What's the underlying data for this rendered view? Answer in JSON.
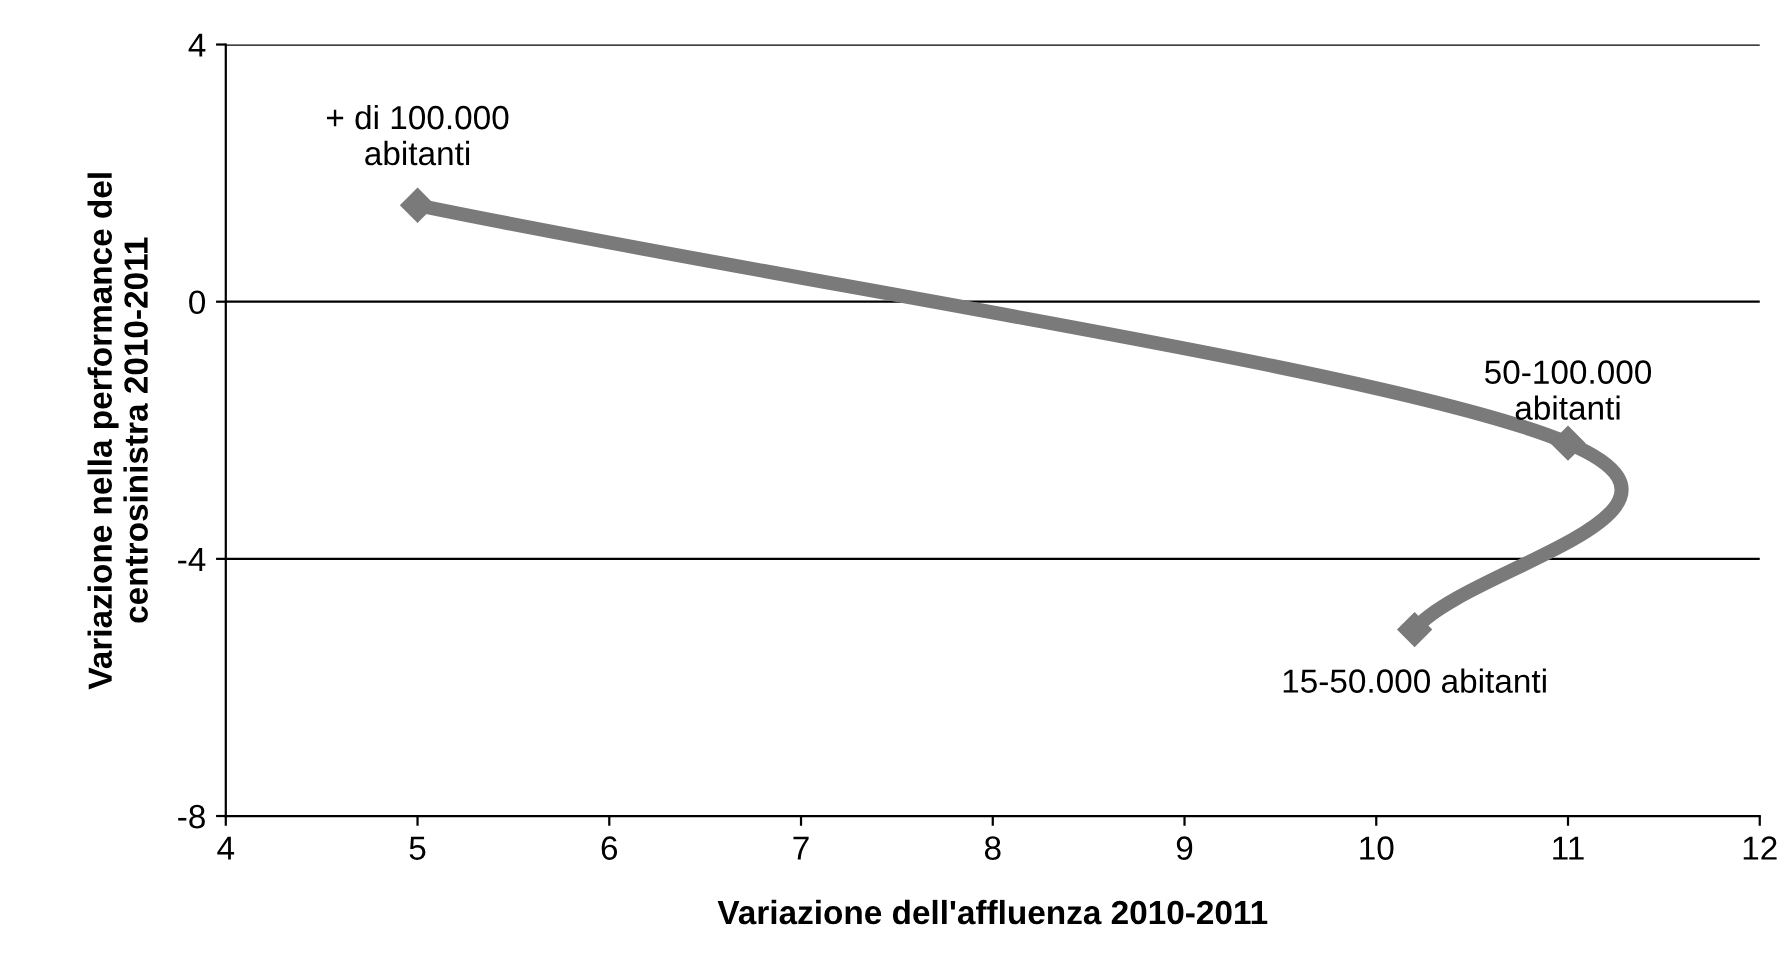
{
  "chart_data": {
    "type": "line",
    "xlabel": "Variazione dell'affluenza 2010-2011",
    "ylabel": "Variazione nella performance del\ncentrosinistra 2010-2011",
    "series": [
      {
        "color": "#7a7a7a",
        "x": [
          5,
          11,
          10.2
        ],
        "values": [
          1.5,
          -2.2,
          -5.1
        ]
      }
    ],
    "xlim": [
      4,
      12
    ],
    "xticks": [
      4,
      5,
      6,
      7,
      8,
      9,
      10,
      11,
      12
    ],
    "ylim": [
      -8,
      4
    ],
    "yticks": [
      -8,
      -4,
      0,
      4
    ],
    "grid": "y",
    "marker": "diamond",
    "line_style": "solid",
    "legend": false,
    "annotations": [
      {
        "text": "+ di 100.000\nabitanti",
        "x": 5,
        "y": 1.5
      },
      {
        "text": "50-100.000\nabitanti",
        "x": 11,
        "y": -2.2
      },
      {
        "text": "15-50.000 abitanti",
        "x": 10.2,
        "y": -5.1
      }
    ]
  }
}
